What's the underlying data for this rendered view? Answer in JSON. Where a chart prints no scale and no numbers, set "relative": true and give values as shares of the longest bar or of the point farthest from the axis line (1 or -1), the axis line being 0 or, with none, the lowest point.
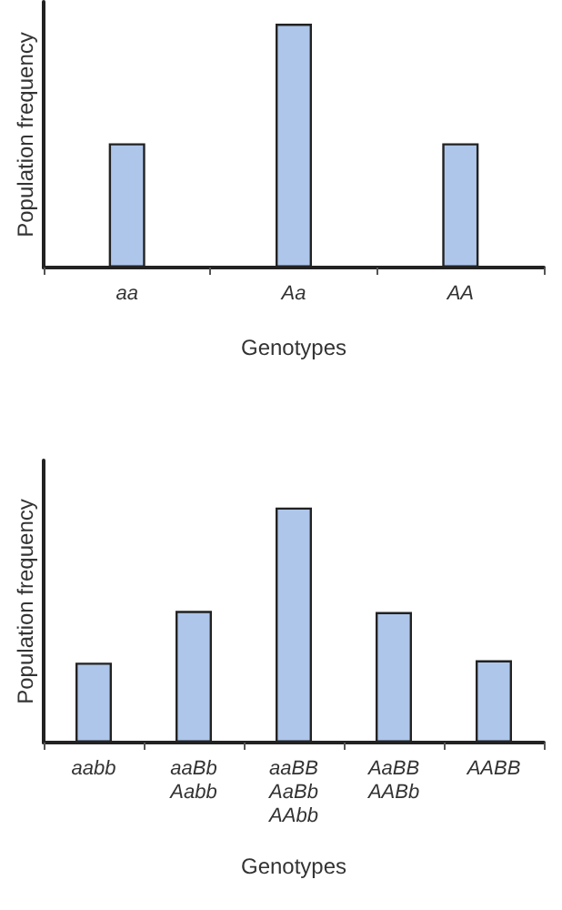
{
  "chart_data": [
    {
      "type": "bar",
      "relative": true,
      "xlabel": "Genotypes",
      "ylabel": "Population frequency",
      "categories": [
        "aa",
        "Aa",
        "AA"
      ],
      "series": [
        {
          "color": "#aec6ea",
          "values": [
            0.51,
            1,
            0.51
          ]
        }
      ]
    },
    {
      "type": "bar",
      "relative": true,
      "xlabel": "Genotypes",
      "ylabel": "Population frequency",
      "categories": [
        "aabb",
        "aaBb\nAabb",
        "aaBB\nAaBb\nAAbb",
        "AaBB\nAABb",
        "AABB"
      ],
      "series": [
        {
          "color": "#aec6ea",
          "values": [
            0.34,
            0.56,
            1,
            0.555,
            0.35
          ]
        }
      ]
    }
  ]
}
